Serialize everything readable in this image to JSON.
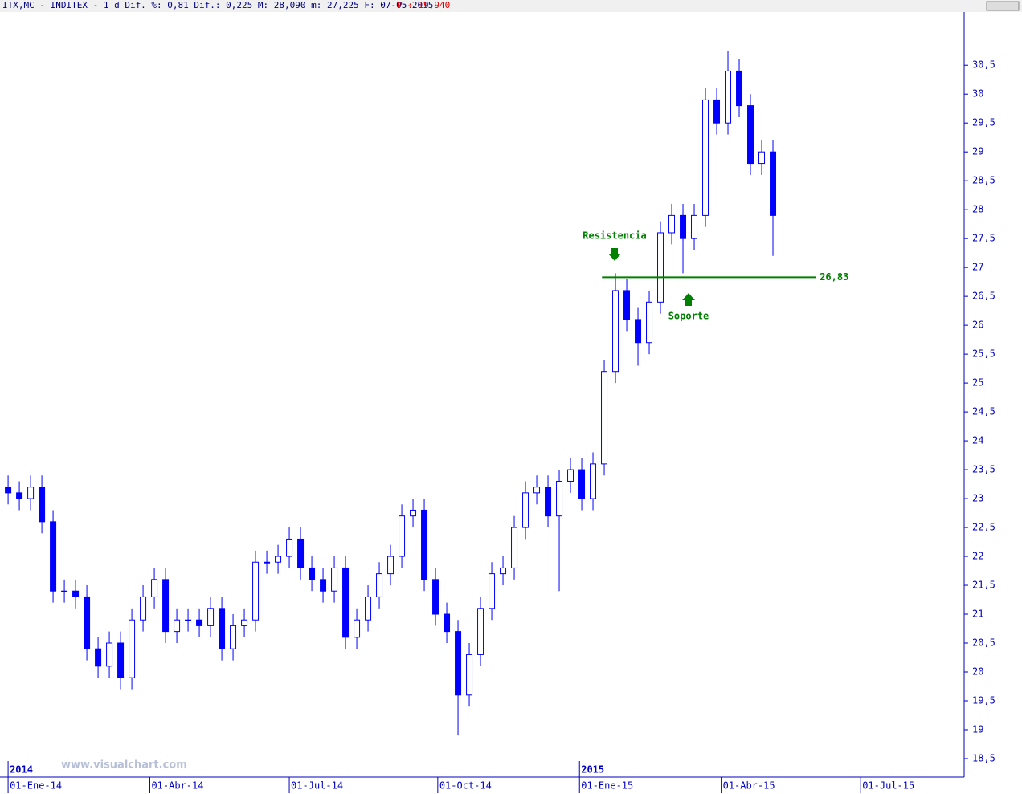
{
  "chart_data": {
    "type": "candlestick",
    "title": "ITX,MC - INDITEX -  1 d Dif. %: 0,81 Dif.: 0,225 M: 28,090 m: 27,225 F: 07-05-2015",
    "price_label": "P : 19,940",
    "watermark": "www.visualchart.com",
    "years": [
      {
        "value": 0,
        "label": "2014"
      },
      {
        "value": 254,
        "label": "2015"
      }
    ],
    "color": "#0000ff",
    "x": [
      0,
      5,
      10,
      15,
      20,
      25,
      30,
      35,
      40,
      45,
      50,
      55,
      60,
      65,
      70,
      75,
      80,
      85,
      90,
      95,
      100,
      105,
      110,
      115,
      120,
      125,
      130,
      135,
      140,
      145,
      150,
      155,
      160,
      165,
      170,
      175,
      180,
      185,
      190,
      195,
      200,
      205,
      210,
      215,
      220,
      225,
      230,
      235,
      240,
      245,
      250,
      255,
      260,
      265,
      270,
      275,
      280,
      285,
      290,
      295,
      300,
      305,
      310,
      315,
      320,
      325,
      330,
      335,
      340
    ],
    "open": [
      23.2,
      23.1,
      23.0,
      23.2,
      22.6,
      21.4,
      21.4,
      21.3,
      20.4,
      20.1,
      20.5,
      19.9,
      20.9,
      21.3,
      21.6,
      20.7,
      20.9,
      20.9,
      20.8,
      21.1,
      20.4,
      20.8,
      20.9,
      21.9,
      21.9,
      22.0,
      22.3,
      21.8,
      21.6,
      21.4,
      21.8,
      20.6,
      20.9,
      21.3,
      21.7,
      22.0,
      22.7,
      22.8,
      21.6,
      21.0,
      20.7,
      19.6,
      20.3,
      21.1,
      21.7,
      21.8,
      22.5,
      23.1,
      23.2,
      22.7,
      23.3,
      23.5,
      23.0,
      23.6,
      25.2,
      26.6,
      26.1,
      25.7,
      26.4,
      27.6,
      27.9,
      27.5,
      27.9,
      29.9,
      29.5,
      30.4,
      29.8,
      28.8,
      29.0
    ],
    "high": [
      23.4,
      23.3,
      23.4,
      23.4,
      22.8,
      21.6,
      21.6,
      21.5,
      20.6,
      20.7,
      20.7,
      21.1,
      21.5,
      21.8,
      21.8,
      21.1,
      21.1,
      21.1,
      21.3,
      21.3,
      21.0,
      21.1,
      22.1,
      22.1,
      22.2,
      22.5,
      22.5,
      22.0,
      21.8,
      22.0,
      22.0,
      21.1,
      21.5,
      21.9,
      22.2,
      22.9,
      23.0,
      23.0,
      21.8,
      21.2,
      20.9,
      20.5,
      21.3,
      21.9,
      22.0,
      22.7,
      23.3,
      23.4,
      23.4,
      23.5,
      23.7,
      23.7,
      23.8,
      25.4,
      26.9,
      26.8,
      26.3,
      26.6,
      27.8,
      28.1,
      28.1,
      28.1,
      30.1,
      30.1,
      30.75,
      30.6,
      30.0,
      29.2,
      29.2
    ],
    "low": [
      22.9,
      22.8,
      22.8,
      22.4,
      21.2,
      21.2,
      21.1,
      20.2,
      19.9,
      19.9,
      19.7,
      19.7,
      20.7,
      21.1,
      20.5,
      20.5,
      20.7,
      20.6,
      20.6,
      20.2,
      20.2,
      20.6,
      20.7,
      21.7,
      21.7,
      21.8,
      21.6,
      21.4,
      21.2,
      21.2,
      20.4,
      20.4,
      20.7,
      21.1,
      21.5,
      21.8,
      22.5,
      21.4,
      20.8,
      20.5,
      18.9,
      19.4,
      20.1,
      20.9,
      21.5,
      21.6,
      22.3,
      22.9,
      22.5,
      21.4,
      23.1,
      22.8,
      22.8,
      23.4,
      25.0,
      25.9,
      25.3,
      25.5,
      26.2,
      27.4,
      26.9,
      27.3,
      27.7,
      29.3,
      29.3,
      29.6,
      28.6,
      28.6,
      27.2
    ],
    "close": [
      23.1,
      23.0,
      23.2,
      22.6,
      21.4,
      21.4,
      21.3,
      20.4,
      20.1,
      20.5,
      19.9,
      20.9,
      21.3,
      21.6,
      20.7,
      20.9,
      20.9,
      20.8,
      21.1,
      20.4,
      20.8,
      20.9,
      21.9,
      21.9,
      22.0,
      22.3,
      21.8,
      21.6,
      21.4,
      21.8,
      20.6,
      20.9,
      21.3,
      21.7,
      22.0,
      22.7,
      22.8,
      21.6,
      21.0,
      20.7,
      19.6,
      20.3,
      21.1,
      21.7,
      21.8,
      22.5,
      23.1,
      23.2,
      22.7,
      23.3,
      23.5,
      23.0,
      23.6,
      25.2,
      26.6,
      26.1,
      25.7,
      26.4,
      27.6,
      27.9,
      27.5,
      27.9,
      29.9,
      29.5,
      30.4,
      29.8,
      28.8,
      29.0,
      27.9
    ],
    "xlim": [
      -3.6,
      425
    ],
    "xticks": [
      {
        "value": 0,
        "label": "01-Ene-14"
      },
      {
        "value": 63,
        "label": "01-Abr-14"
      },
      {
        "value": 125,
        "label": "01-Jul-14"
      },
      {
        "value": 191,
        "label": "01-Oct-14"
      },
      {
        "value": 254,
        "label": "01-Ene-15"
      },
      {
        "value": 317,
        "label": "01-Abr-15"
      },
      {
        "value": 379,
        "label": "01-Jul-15"
      }
    ],
    "ylim": [
      18.18,
      31.42
    ],
    "yticks": [
      {
        "value": 18.5,
        "label": "18,5"
      },
      19,
      {
        "value": 19.5,
        "label": "19,5"
      },
      20,
      {
        "value": 20.5,
        "label": "20,5"
      },
      21,
      {
        "value": 21.5,
        "label": "21,5"
      },
      22,
      {
        "value": 22.5,
        "label": "22,5"
      },
      23,
      {
        "value": 23.5,
        "label": "23,5"
      },
      24,
      {
        "value": 24.5,
        "label": "24,5"
      },
      25,
      {
        "value": 25.5,
        "label": "25,5"
      },
      26,
      {
        "value": 26.5,
        "label": "26,5"
      },
      27,
      {
        "value": 27.5,
        "label": "27,5"
      },
      28,
      {
        "value": 28.5,
        "label": "28,5"
      },
      29,
      {
        "value": 29.5,
        "label": "29,5"
      },
      30,
      {
        "value": 30.5,
        "label": "30,5"
      }
    ],
    "level": {
      "value": 26.83,
      "label": "26,83",
      "color": "#008000",
      "x_start": 264,
      "x_end": 359
    },
    "annotations": [
      "Resistencia",
      "Soporte"
    ]
  }
}
